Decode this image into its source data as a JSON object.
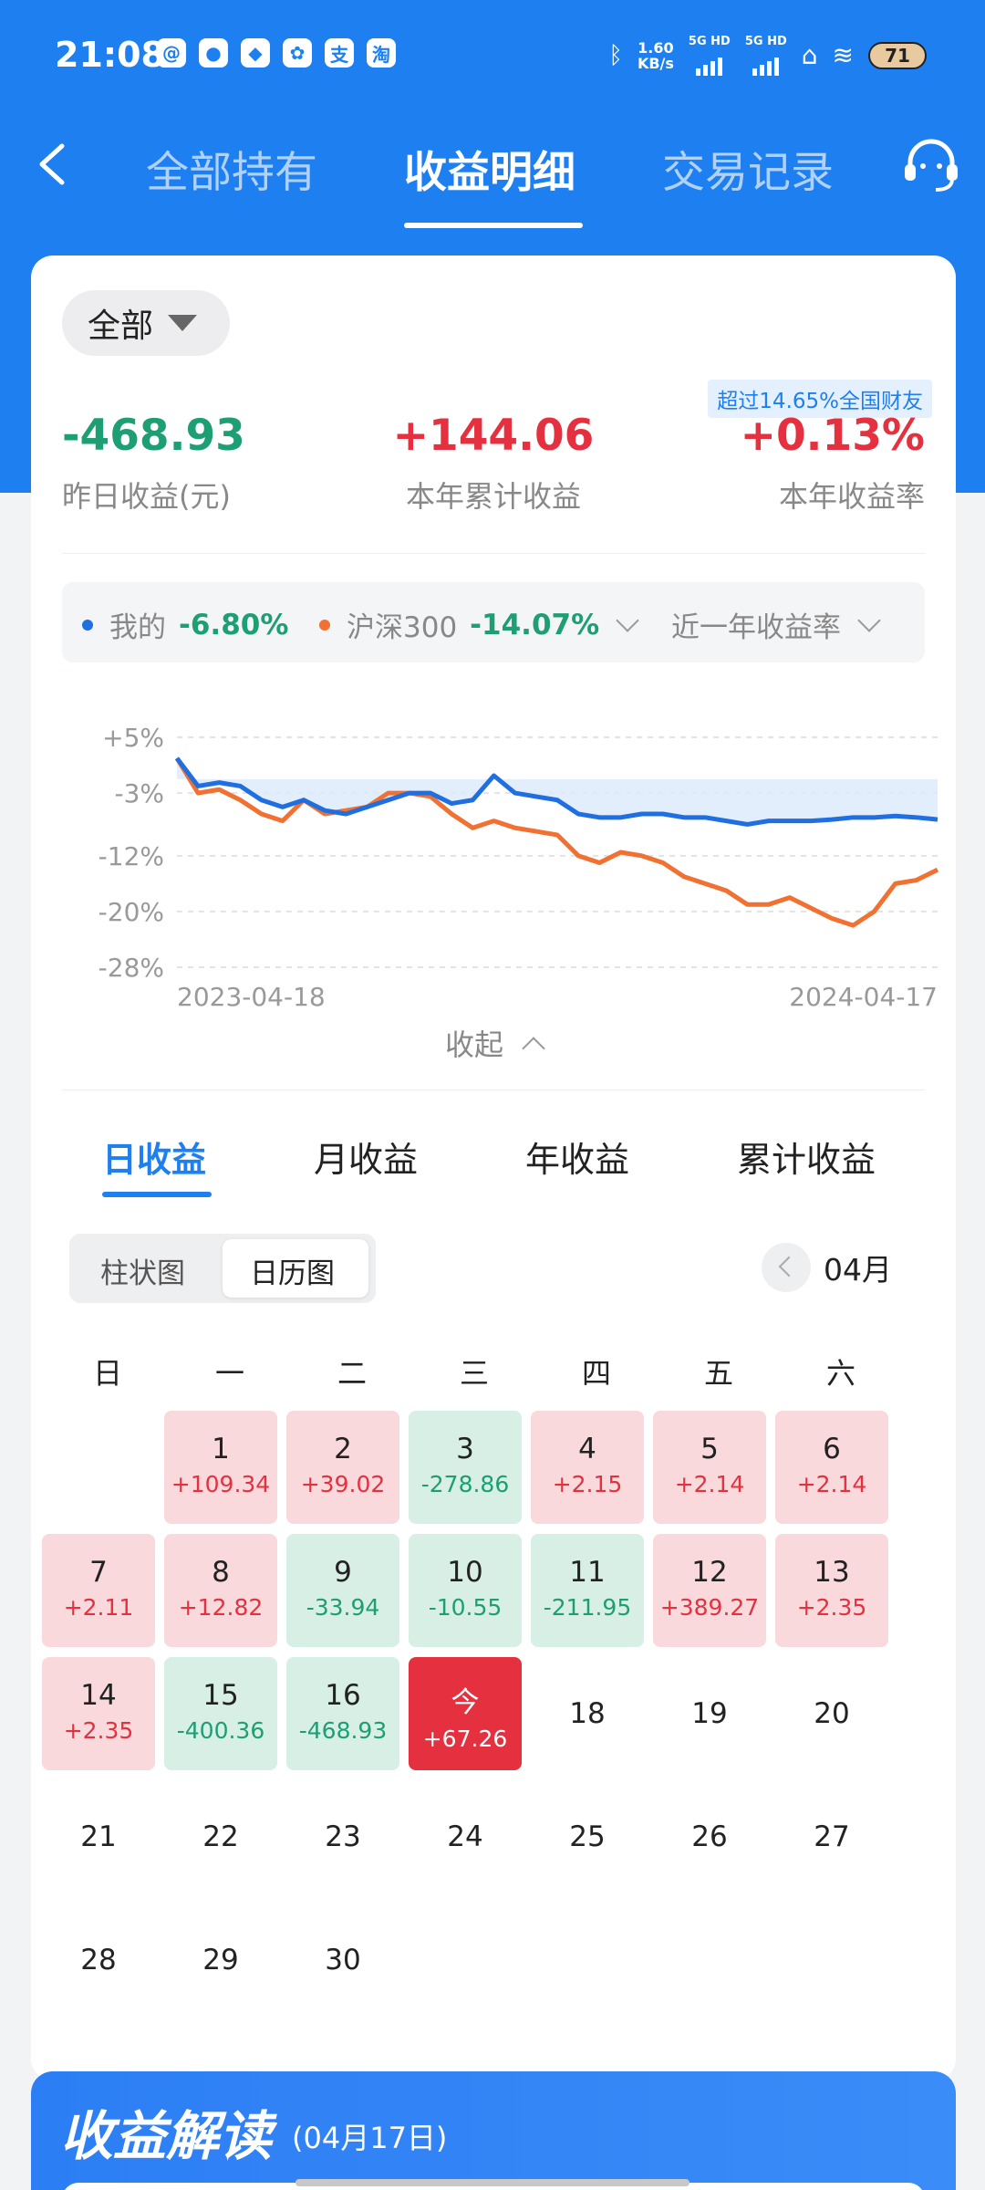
{
  "status_bar": {
    "time": "21:08",
    "speed_value": "1.60",
    "speed_unit": "KB/s",
    "sim1": "5G HD",
    "sim2": "5G HD",
    "battery": "71"
  },
  "nav": {
    "tabs": [
      "全部持有",
      "收益明细",
      "交易记录"
    ],
    "active_tab": 1
  },
  "summary": {
    "filter": "全部",
    "rank_badge": "超过14.65%全国财友",
    "yesterday_value": "-468.93",
    "yesterday_label": "昨日收益(元)",
    "year_value": "+144.06",
    "year_label": "本年累计收益",
    "rate_value": "+0.13%",
    "rate_label": "本年收益率"
  },
  "legend": {
    "mine_label": "我的",
    "mine_pct": "-6.80%",
    "bench_label": "沪深300",
    "bench_pct": "-14.07%",
    "range_label": "近一年收益率"
  },
  "chart_data": {
    "type": "line",
    "x_start": "2023-04-18",
    "x_end": "2024-04-17",
    "y_ticks": [
      "+5%",
      "-3%",
      "-12%",
      "-20%",
      "-28%"
    ],
    "ylim": [
      -28,
      5
    ],
    "colors": {
      "mine": "#1f6fe0",
      "bench": "#f07132"
    },
    "series": [
      {
        "name": "我的",
        "values": [
          2,
          -2,
          -1.5,
          -2,
          -4,
          -5,
          -4,
          -5.5,
          -6,
          -5,
          -4,
          -3,
          -3,
          -4.5,
          -4,
          -0.5,
          -3,
          -3.5,
          -4,
          -6,
          -6.5,
          -6.5,
          -6,
          -6,
          -6.5,
          -6.5,
          -7,
          -7.5,
          -7,
          -7,
          -7,
          -6.8,
          -6.5,
          -6.5,
          -6.3,
          -6.5,
          -6.8
        ]
      },
      {
        "name": "沪深300",
        "values": [
          2,
          -3,
          -2.5,
          -4,
          -6,
          -7,
          -4,
          -6,
          -5.5,
          -5,
          -3,
          -3,
          -3.5,
          -6,
          -8,
          -7,
          -8,
          -8.5,
          -9,
          -12,
          -13,
          -11.5,
          -12,
          -13,
          -15,
          -16,
          -17,
          -19,
          -19,
          -18,
          -19.5,
          -21,
          -22,
          -20,
          -16,
          -15.5,
          -14
        ]
      }
    ]
  },
  "collapse_label": "收起",
  "period_tabs": [
    "日收益",
    "月收益",
    "年收益",
    "累计收益"
  ],
  "view_options": [
    "柱状图",
    "日历图"
  ],
  "month_label": "04月",
  "weekdays": [
    "日",
    "一",
    "二",
    "三",
    "四",
    "五",
    "六"
  ],
  "calendar": [
    {
      "day": "1",
      "value": "+109.34"
    },
    {
      "day": "2",
      "value": "+39.02"
    },
    {
      "day": "3",
      "value": "-278.86"
    },
    {
      "day": "4",
      "value": "+2.15"
    },
    {
      "day": "5",
      "value": "+2.14"
    },
    {
      "day": "6",
      "value": "+2.14"
    },
    {
      "day": "7",
      "value": "+2.11"
    },
    {
      "day": "8",
      "value": "+12.82"
    },
    {
      "day": "9",
      "value": "-33.94"
    },
    {
      "day": "10",
      "value": "-10.55"
    },
    {
      "day": "11",
      "value": "-211.95"
    },
    {
      "day": "12",
      "value": "+389.27"
    },
    {
      "day": "13",
      "value": "+2.35"
    },
    {
      "day": "14",
      "value": "+2.35"
    },
    {
      "day": "15",
      "value": "-400.36"
    },
    {
      "day": "16",
      "value": "-468.93"
    },
    {
      "day": "今",
      "value": "+67.26",
      "today": true
    },
    {
      "day": "18"
    },
    {
      "day": "19"
    },
    {
      "day": "20"
    },
    {
      "day": "21"
    },
    {
      "day": "22"
    },
    {
      "day": "23"
    },
    {
      "day": "24"
    },
    {
      "day": "25"
    },
    {
      "day": "26"
    },
    {
      "day": "27"
    },
    {
      "day": "28"
    },
    {
      "day": "29"
    },
    {
      "day": "30"
    }
  ],
  "interpret": {
    "title": "收益解读",
    "date": "(04月17日)"
  }
}
